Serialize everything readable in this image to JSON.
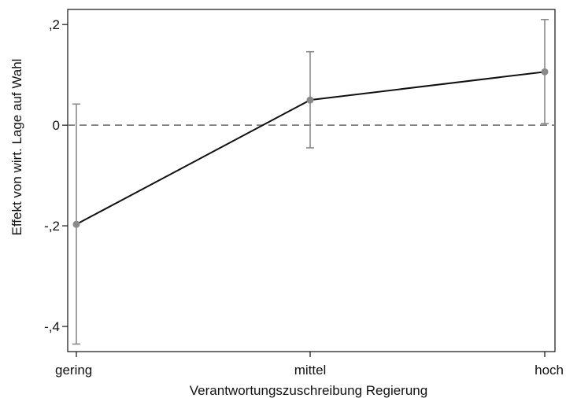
{
  "chart_data": {
    "type": "line",
    "xlabel": "Verantwortungszuschreibung Regierung",
    "ylabel": "Effekt von wirt. Lage auf Wahl",
    "categories": [
      "gering",
      "mittel",
      "hoch"
    ],
    "ylim": [
      -0.45,
      0.23
    ],
    "yticks": [
      0.2,
      0,
      -0.2,
      -0.4
    ],
    "ytick_labels": [
      ",2",
      "0",
      "-,2",
      "-,4"
    ],
    "reference_line": 0,
    "series": [
      {
        "values": [
          -0.197,
          0.05,
          0.106
        ],
        "ci_low": [
          -0.435,
          -0.045,
          0.003
        ],
        "ci_high": [
          0.042,
          0.146,
          0.21
        ]
      }
    ],
    "grid": false,
    "colors": {
      "line": "#111111",
      "marker": "#8a8a8a",
      "error_bar": "#8a8a8a",
      "reference": "#7a7a7a"
    }
  }
}
